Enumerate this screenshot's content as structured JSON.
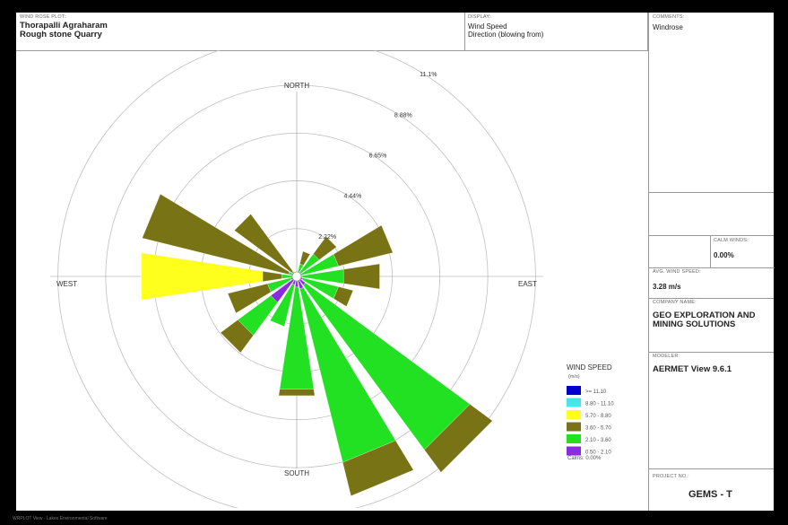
{
  "header": {
    "plot_caption": "WIND ROSE PLOT:",
    "site_line1": "Thorapalli Agraharam",
    "site_line2": "Rough stone Quarry",
    "display_caption": "DISPLAY:",
    "display_line1": "Wind Speed",
    "display_line2": "Direction (blowing from)"
  },
  "sidebar": {
    "comments_caption": "COMMENTS:",
    "comments_value": "Windrose",
    "calm_caption": "CALM WINDS:",
    "calm_value": "0.00%",
    "avg_caption": "AVG. WIND SPEED:",
    "avg_value": "3.28 m/s",
    "company_caption": "COMPANY NAME:",
    "company_value": "GEO EXPLORATION AND MINING SOLUTIONS",
    "modeler_caption": "MODELER:",
    "modeler_value": "AERMET View 9.6.1",
    "project_caption": "PROJECT NO.:",
    "project_value": "GEMS - T"
  },
  "footer": "WRPLOT View - Lakes Environmental Software",
  "chart_data": {
    "type": "windrose",
    "compass": {
      "north": "NORTH",
      "south": "SOUTH",
      "east": "EAST",
      "west": "WEST"
    },
    "rings": [
      2.22,
      4.44,
      6.65,
      8.88,
      11.1
    ],
    "ring_labels": [
      "2.22%",
      "4.44%",
      "6.65%",
      "8.88%",
      "11.1%"
    ],
    "legend_title": "WIND SPEED",
    "legend_unit": "(m/s)",
    "calms_label": "Calms: 0.00%",
    "colors": {
      "0.50-2.10": "#8a2be2",
      "2.10-3.60": "#22e022",
      "3.60-5.70": "#787314",
      "5.70-8.80": "#ffff1e",
      "8.80-11.10": "#44e8e8",
      ">=11.10": "#0000cc"
    },
    "bins": [
      {
        "label": ">= 11.10",
        "color": "#0000cc"
      },
      {
        "label": "8.80 - 11.10",
        "color": "#44e8e8"
      },
      {
        "label": "5.70 - 8.80",
        "color": "#ffff1e"
      },
      {
        "label": "3.60 - 5.70",
        "color": "#787314"
      },
      {
        "label": "2.10 - 3.60",
        "color": "#22e022"
      },
      {
        "label": "0.50 - 2.10",
        "color": "#8a2be2"
      }
    ],
    "directions": [
      {
        "dir": "N",
        "deg": 0,
        "segments": [
          {
            "bin": "0.50-2.10",
            "to": 0.1
          },
          {
            "bin": "2.10-3.60",
            "to": 0.2
          }
        ]
      },
      {
        "dir": "NNE",
        "deg": 22.5,
        "segments": [
          {
            "bin": "0.50-2.10",
            "to": 0.1
          },
          {
            "bin": "2.10-3.60",
            "to": 0.6
          },
          {
            "bin": "3.60-5.70",
            "to": 1.2
          }
        ]
      },
      {
        "dir": "NE",
        "deg": 45,
        "segments": [
          {
            "bin": "0.50-2.10",
            "to": 0.1
          },
          {
            "bin": "2.10-3.60",
            "to": 1.3
          },
          {
            "bin": "3.60-5.70",
            "to": 2.3
          }
        ]
      },
      {
        "dir": "ENE",
        "deg": 67.5,
        "segments": [
          {
            "bin": "0.50-2.10",
            "to": 0.15
          },
          {
            "bin": "2.10-3.60",
            "to": 2.0
          },
          {
            "bin": "3.60-5.70",
            "to": 4.6
          }
        ]
      },
      {
        "dir": "E",
        "deg": 90,
        "segments": [
          {
            "bin": "0.50-2.10",
            "to": 0.15
          },
          {
            "bin": "2.10-3.60",
            "to": 2.2
          },
          {
            "bin": "3.60-5.70",
            "to": 3.9
          }
        ]
      },
      {
        "dir": "ESE",
        "deg": 112.5,
        "segments": [
          {
            "bin": "0.50-2.10",
            "to": 0.3
          },
          {
            "bin": "2.10-3.60",
            "to": 2.0
          },
          {
            "bin": "3.60-5.70",
            "to": 2.7
          }
        ]
      },
      {
        "dir": "SE",
        "deg": 135,
        "segments": [
          {
            "bin": "0.50-2.10",
            "to": 0.5
          },
          {
            "bin": "2.10-3.60",
            "to": 10.0
          },
          {
            "bin": "3.60-5.70",
            "to": 11.3
          }
        ]
      },
      {
        "dir": "SSE",
        "deg": 157.5,
        "segments": [
          {
            "bin": "0.50-2.10",
            "to": 0.6
          },
          {
            "bin": "2.10-3.60",
            "to": 8.9
          },
          {
            "bin": "3.60-5.70",
            "to": 10.5
          }
        ]
      },
      {
        "dir": "S",
        "deg": 180,
        "segments": [
          {
            "bin": "0.50-2.10",
            "to": 0.5
          },
          {
            "bin": "2.10-3.60",
            "to": 5.3
          },
          {
            "bin": "3.60-5.70",
            "to": 5.6
          }
        ]
      },
      {
        "dir": "SSW",
        "deg": 202.5,
        "segments": [
          {
            "bin": "0.50-2.10",
            "to": 0.4
          },
          {
            "bin": "2.10-3.60",
            "to": 2.4
          },
          {
            "bin": "3.60-5.70",
            "to": 2.4
          }
        ]
      },
      {
        "dir": "SW",
        "deg": 225,
        "segments": [
          {
            "bin": "0.50-2.10",
            "to": 1.5
          },
          {
            "bin": "2.10-3.60",
            "to": 3.4
          },
          {
            "bin": "3.60-5.70",
            "to": 4.4
          }
        ]
      },
      {
        "dir": "WSW",
        "deg": 247.5,
        "segments": [
          {
            "bin": "0.50-2.10",
            "to": 0.3
          },
          {
            "bin": "2.10-3.60",
            "to": 1.4
          },
          {
            "bin": "3.60-5.70",
            "to": 3.3
          }
        ]
      },
      {
        "dir": "W",
        "deg": 270,
        "segments": [
          {
            "bin": "0.50-2.10",
            "to": 0.2
          },
          {
            "bin": "2.10-3.60",
            "to": 0.7
          },
          {
            "bin": "3.60-5.70",
            "to": 1.6
          },
          {
            "bin": "5.70-8.80",
            "to": 7.3
          }
        ]
      },
      {
        "dir": "WNW",
        "deg": 292.5,
        "segments": [
          {
            "bin": "0.50-2.10",
            "to": 0.1
          },
          {
            "bin": "2.10-3.60",
            "to": 0.4
          },
          {
            "bin": "3.60-5.70",
            "to": 7.4
          }
        ]
      },
      {
        "dir": "NW",
        "deg": 315,
        "segments": [
          {
            "bin": "0.50-2.10",
            "to": 0.1
          },
          {
            "bin": "2.10-3.60",
            "to": 0.3
          },
          {
            "bin": "3.60-5.70",
            "to": 3.6
          }
        ]
      },
      {
        "dir": "NNW",
        "deg": 337.5,
        "segments": [
          {
            "bin": "0.50-2.10",
            "to": 0.1
          },
          {
            "bin": "2.10-3.60",
            "to": 0.2
          }
        ]
      }
    ]
  }
}
